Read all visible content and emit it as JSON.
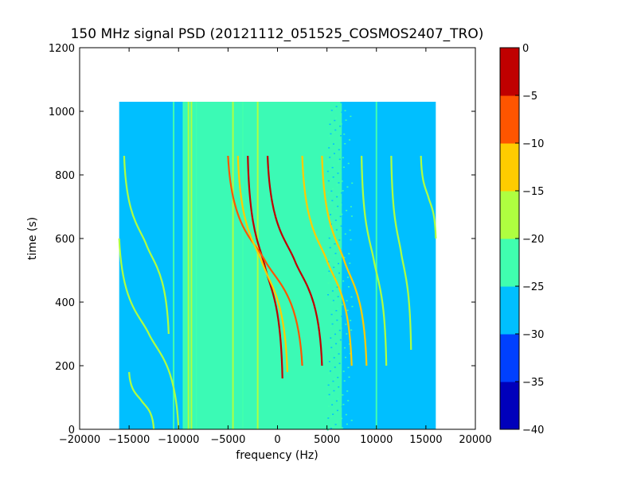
{
  "chart_data": {
    "type": "heatmap",
    "title": "150 MHz signal PSD (20121112_051525_COSMOS2407_TRO)",
    "xlabel": "frequency (Hz)",
    "ylabel": "time (s)",
    "xlim": [
      -20000,
      20000
    ],
    "ylim": [
      0,
      1200
    ],
    "xticks": [
      -20000,
      -15000,
      -10000,
      -5000,
      0,
      5000,
      10000,
      15000,
      20000
    ],
    "xtick_labels": [
      "−20000",
      "−15000",
      "−10000",
      "−5000",
      "0",
      "5000",
      "10000",
      "15000",
      "20000"
    ],
    "yticks": [
      0,
      200,
      400,
      600,
      800,
      1000,
      1200
    ],
    "ytick_labels": [
      "0",
      "200",
      "400",
      "600",
      "800",
      "1000",
      "1200"
    ],
    "data_extent": {
      "freq_min": -16000,
      "freq_max": 16000,
      "time_min": 0,
      "time_max": 1030
    },
    "background_level": -27.5,
    "noise_band": {
      "freq_min": -9500,
      "freq_max": 6500,
      "level": -22.5
    },
    "vertical_lines": [
      {
        "freq": -10500,
        "level": -22.5
      },
      {
        "freq": -9500,
        "level": -22.5
      },
      {
        "freq": -9000,
        "level": -17.5
      },
      {
        "freq": -8700,
        "level": -17.5
      },
      {
        "freq": -8200,
        "level": -22.5
      },
      {
        "freq": -4500,
        "level": -17.5
      },
      {
        "freq": -3500,
        "level": -22.5
      },
      {
        "freq": -2000,
        "level": -17.5
      },
      {
        "freq": 10000,
        "level": -22.5
      }
    ],
    "doppler_tracks": [
      {
        "t_start": 860,
        "f_start": -3000,
        "t_end": 160,
        "f_end": 500,
        "level": -2.5
      },
      {
        "t_start": 860,
        "f_start": -1000,
        "t_end": 200,
        "f_end": 4500,
        "level": -2.5
      },
      {
        "t_start": 860,
        "f_start": -5000,
        "t_end": 200,
        "f_end": 2500,
        "level": -7.5
      },
      {
        "t_start": 860,
        "f_start": 2500,
        "t_end": 200,
        "f_end": 7500,
        "level": -12.5
      },
      {
        "t_start": 860,
        "f_start": 4500,
        "t_end": 200,
        "f_end": 9000,
        "level": -12.5
      },
      {
        "t_start": 860,
        "f_start": -4000,
        "t_end": 180,
        "f_end": 1000,
        "level": -12.5
      },
      {
        "t_start": 860,
        "f_start": 8500,
        "t_end": 200,
        "f_end": 11000,
        "level": -17.5
      },
      {
        "t_start": 860,
        "f_start": 11500,
        "t_end": 250,
        "f_end": 13500,
        "level": -17.5
      },
      {
        "t_start": 860,
        "f_start": -15500,
        "t_end": 300,
        "f_end": -11000,
        "level": -17.5
      },
      {
        "t_start": 860,
        "f_start": 14500,
        "t_end": 600,
        "f_end": 16000,
        "level": -17.5
      },
      {
        "t_start": 600,
        "f_start": -16000,
        "t_end": 0,
        "f_end": -10000,
        "level": -17.5
      },
      {
        "t_start": 180,
        "f_start": -15000,
        "t_end": 0,
        "f_end": -12500,
        "level": -17.5
      }
    ],
    "colorbar": {
      "min": -40,
      "max": 0,
      "ticks": [
        0,
        -5,
        -10,
        -15,
        -20,
        -25,
        -30,
        -35,
        -40
      ],
      "tick_labels": [
        "0",
        "−5",
        "−10",
        "−15",
        "−20",
        "−25",
        "−30",
        "−35",
        "−40"
      ],
      "colors": [
        "#0000bb",
        "#0040ff",
        "#00bfff",
        "#40ffaf",
        "#afff40",
        "#ffcc00",
        "#ff5500",
        "#c00000"
      ]
    }
  }
}
